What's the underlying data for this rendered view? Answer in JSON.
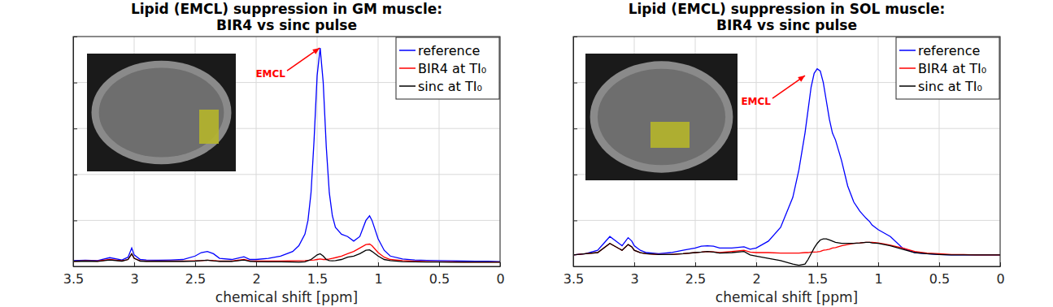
{
  "chart_data": [
    {
      "type": "line",
      "title": [
        "Lipid (EMCL) suppression in GM muscle:",
        "BIR4 vs sinc pulse"
      ],
      "x_label": "chemical shift [ppm]",
      "x": [
        3.5,
        3.4,
        3.3,
        3.2,
        3.1,
        3.05,
        3.02,
        3.0,
        2.95,
        2.9,
        2.8,
        2.7,
        2.6,
        2.5,
        2.45,
        2.4,
        2.35,
        2.3,
        2.2,
        2.1,
        2.05,
        2.0,
        1.9,
        1.8,
        1.7,
        1.65,
        1.6,
        1.575,
        1.55,
        1.525,
        1.5,
        1.475,
        1.45,
        1.425,
        1.4,
        1.375,
        1.35,
        1.3,
        1.25,
        1.2,
        1.15,
        1.1,
        1.07,
        1.05,
        1.0,
        0.95,
        0.9,
        0.8,
        0.7,
        0.6,
        0.5,
        0.4,
        0.3,
        0.2,
        0.1,
        0.0
      ],
      "series": [
        {
          "name": "reference",
          "color": "#0000ff",
          "values": [
            0.25,
            0.27,
            0.25,
            0.38,
            0.28,
            0.4,
            0.8,
            0.5,
            0.3,
            0.28,
            0.27,
            0.28,
            0.3,
            0.45,
            0.6,
            0.65,
            0.55,
            0.35,
            0.3,
            0.42,
            0.3,
            0.3,
            0.35,
            0.45,
            0.65,
            0.9,
            1.4,
            2.0,
            3.2,
            5.5,
            8.3,
            9.5,
            8.0,
            5.2,
            3.2,
            2.2,
            1.7,
            1.4,
            1.3,
            1.1,
            1.3,
            2.0,
            2.2,
            2.0,
            1.2,
            0.7,
            0.45,
            0.32,
            0.28,
            0.26,
            0.25,
            0.24,
            0.23,
            0.22,
            0.22,
            0.21
          ]
        },
        {
          "name": "BIR4 at TI₀",
          "color": "#ff0000",
          "values": [
            0.22,
            0.24,
            0.23,
            0.3,
            0.24,
            0.3,
            0.55,
            0.35,
            0.24,
            0.23,
            0.23,
            0.23,
            0.23,
            0.24,
            0.25,
            0.27,
            0.25,
            0.23,
            0.23,
            0.3,
            0.24,
            0.23,
            0.23,
            0.23,
            0.24,
            0.24,
            0.25,
            0.26,
            0.27,
            0.28,
            0.3,
            0.32,
            0.3,
            0.3,
            0.32,
            0.35,
            0.38,
            0.45,
            0.55,
            0.65,
            0.8,
            0.95,
            0.97,
            0.9,
            0.6,
            0.4,
            0.3,
            0.25,
            0.22,
            0.21,
            0.2,
            0.2,
            0.19,
            0.19,
            0.19,
            0.19
          ]
        },
        {
          "name": "sinc at TI₀",
          "color": "#000000",
          "values": [
            0.22,
            0.23,
            0.22,
            0.28,
            0.23,
            0.3,
            0.55,
            0.35,
            0.23,
            0.22,
            0.22,
            0.22,
            0.22,
            0.23,
            0.25,
            0.27,
            0.24,
            0.22,
            0.22,
            0.28,
            0.22,
            0.21,
            0.2,
            0.2,
            0.19,
            0.18,
            0.2,
            0.25,
            0.3,
            0.4,
            0.5,
            0.55,
            0.45,
            0.3,
            0.25,
            0.24,
            0.25,
            0.3,
            0.4,
            0.45,
            0.55,
            0.7,
            0.72,
            0.65,
            0.45,
            0.3,
            0.25,
            0.21,
            0.2,
            0.19,
            0.19,
            0.18,
            0.18,
            0.18,
            0.18,
            0.18
          ]
        }
      ],
      "annotations": [
        {
          "text": "EMCL",
          "x": 1.48,
          "y": 9.5,
          "color": "#ff0000"
        }
      ],
      "xlim": [
        3.5,
        0
      ],
      "xticks": [
        3.5,
        3,
        2.5,
        2,
        1.5,
        1,
        0.5,
        0
      ],
      "ylim": [
        0,
        10
      ],
      "yticks": [
        0,
        2,
        4,
        6,
        8,
        10
      ],
      "grid": true,
      "legend": "top-right",
      "tick_labels": "x"
    },
    {
      "type": "line",
      "title": [
        "Lipid (EMCL) suppression in SOL muscle:",
        "BIR4 vs sinc pulse"
      ],
      "x_label": "chemical shift [ppm]",
      "x": [
        3.5,
        3.4,
        3.3,
        3.2,
        3.1,
        3.05,
        3.02,
        3.0,
        2.95,
        2.9,
        2.8,
        2.7,
        2.6,
        2.5,
        2.45,
        2.4,
        2.35,
        2.3,
        2.2,
        2.1,
        2.05,
        2.0,
        1.9,
        1.8,
        1.7,
        1.65,
        1.6,
        1.575,
        1.55,
        1.525,
        1.5,
        1.475,
        1.45,
        1.425,
        1.4,
        1.375,
        1.35,
        1.3,
        1.25,
        1.2,
        1.15,
        1.1,
        1.07,
        1.05,
        1.0,
        0.95,
        0.9,
        0.8,
        0.7,
        0.6,
        0.5,
        0.4,
        0.3,
        0.2,
        0.1,
        0.0
      ],
      "series": [
        {
          "name": "reference",
          "color": "#0000ff",
          "values": [
            0.5,
            0.55,
            0.7,
            1.3,
            0.9,
            1.25,
            1.1,
            0.9,
            0.7,
            0.6,
            0.55,
            0.6,
            0.7,
            0.8,
            0.88,
            0.9,
            0.88,
            0.8,
            0.8,
            0.85,
            0.75,
            0.8,
            1.1,
            1.7,
            3.0,
            4.2,
            5.8,
            6.8,
            7.8,
            8.4,
            8.6,
            8.5,
            8.0,
            7.2,
            6.4,
            5.8,
            5.5,
            4.6,
            3.5,
            2.8,
            2.4,
            2.1,
            1.95,
            1.8,
            1.6,
            1.45,
            1.3,
            0.8,
            0.6,
            0.55,
            0.52,
            0.5,
            0.5,
            0.5,
            0.5,
            0.5
          ]
        },
        {
          "name": "BIR4 at TI₀",
          "color": "#ff0000",
          "values": [
            0.5,
            0.55,
            0.6,
            1.0,
            0.7,
            0.95,
            0.85,
            0.7,
            0.6,
            0.55,
            0.52,
            0.52,
            0.55,
            0.6,
            0.62,
            0.65,
            0.63,
            0.6,
            0.65,
            0.7,
            0.62,
            0.6,
            0.6,
            0.58,
            0.58,
            0.58,
            0.6,
            0.6,
            0.62,
            0.62,
            0.63,
            0.65,
            0.7,
            0.72,
            0.75,
            0.8,
            0.82,
            0.9,
            0.95,
            1.0,
            1.02,
            1.05,
            1.05,
            1.05,
            1.02,
            0.98,
            0.92,
            0.8,
            0.65,
            0.58,
            0.55,
            0.52,
            0.52,
            0.5,
            0.5,
            0.5
          ]
        },
        {
          "name": "sinc at TI₀",
          "color": "#000000",
          "values": [
            0.5,
            0.55,
            0.6,
            1.0,
            0.7,
            0.95,
            0.85,
            0.7,
            0.6,
            0.55,
            0.52,
            0.52,
            0.55,
            0.6,
            0.62,
            0.65,
            0.62,
            0.58,
            0.6,
            0.65,
            0.5,
            0.45,
            0.35,
            0.25,
            0.1,
            0.05,
            0.1,
            0.3,
            0.55,
            0.8,
            1.0,
            1.15,
            1.2,
            1.2,
            1.15,
            1.1,
            1.05,
            1.0,
            1.0,
            1.0,
            1.02,
            1.05,
            1.05,
            1.02,
            1.0,
            0.95,
            0.9,
            0.75,
            0.6,
            0.55,
            0.52,
            0.5,
            0.5,
            0.5,
            0.5,
            0.5
          ]
        }
      ],
      "annotations": [
        {
          "text": "EMCL",
          "x": 1.6,
          "y": 8.3,
          "color": "#ff0000"
        }
      ],
      "xlim": [
        3.5,
        0
      ],
      "xticks": [
        3.5,
        3,
        2.5,
        2,
        1.5,
        1,
        0.5,
        0
      ],
      "ylim": [
        0,
        10
      ],
      "yticks": [
        0,
        2,
        4,
        6,
        8,
        10
      ],
      "grid": true,
      "legend": "top-right",
      "tick_labels": "x"
    }
  ]
}
